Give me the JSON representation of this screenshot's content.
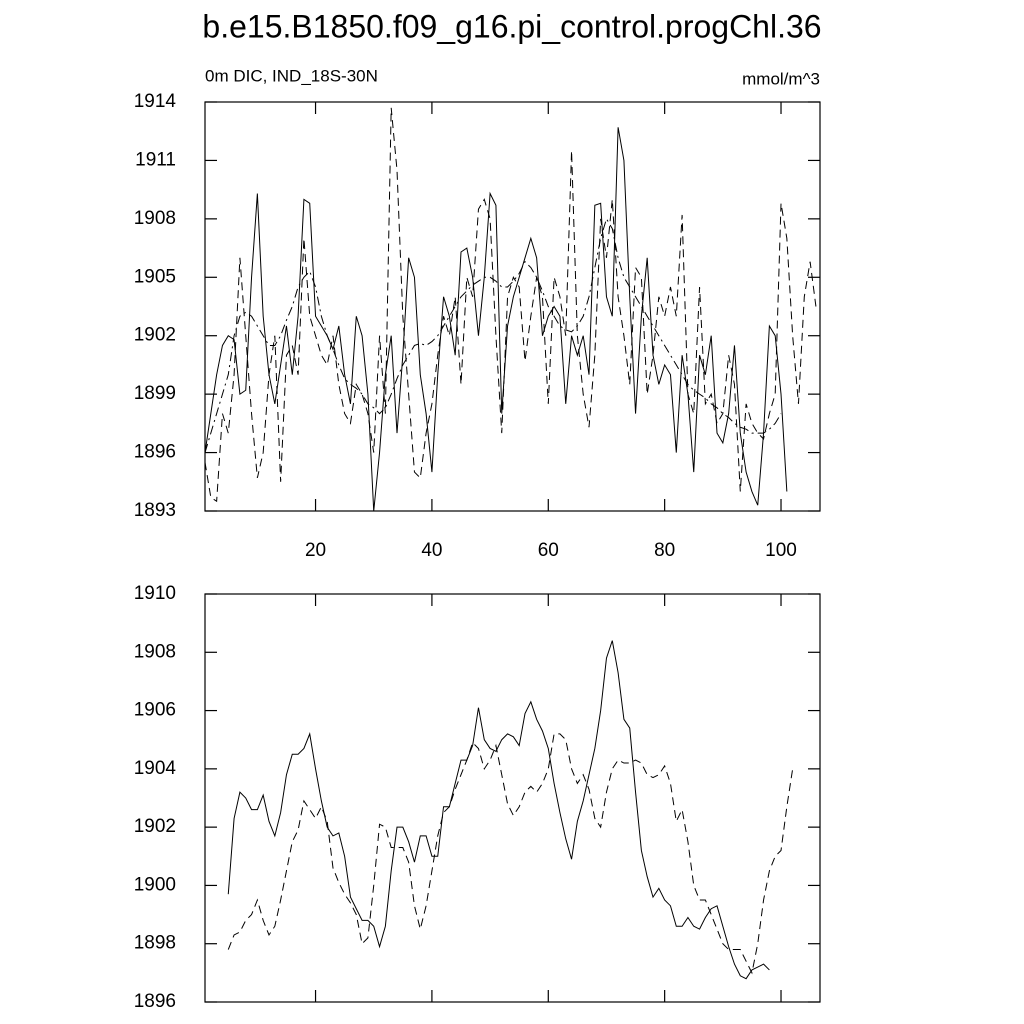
{
  "chart_data": [
    {
      "type": "line",
      "title": "b.e15.B1850.f09_g16.pi_control.progChl.36",
      "subtitle": "0m DIC, IND_18S-30N",
      "units": "mmol/m^3",
      "xlim": [
        1,
        106.7
      ],
      "xticks": [
        20,
        40,
        60,
        80,
        100
      ],
      "ylim": [
        1893,
        1914
      ],
      "yticks": [
        1893,
        1896,
        1899,
        1902,
        1905,
        1908,
        1911,
        1914
      ],
      "series": [
        {
          "color": "#000000",
          "dash": "solid",
          "x": [
            1,
            2,
            3,
            4,
            5,
            6,
            7,
            8,
            9,
            10,
            11,
            12,
            13,
            14,
            15,
            16,
            17,
            18,
            19,
            20,
            21,
            22,
            23,
            24,
            25,
            26,
            27,
            28,
            29,
            30,
            31,
            32,
            33,
            34,
            35,
            36,
            37,
            38,
            39,
            40,
            41,
            42,
            43,
            44,
            45,
            46,
            47,
            48,
            49,
            50,
            51,
            52,
            53,
            54,
            55,
            56,
            57,
            58,
            59,
            60,
            61,
            62,
            63,
            64,
            65,
            66,
            67,
            68,
            69,
            70,
            71,
            72,
            73,
            74,
            75,
            76,
            77,
            78,
            79,
            80,
            81,
            82,
            83,
            84,
            85,
            86,
            87,
            88,
            89,
            90,
            91,
            92,
            93,
            94,
            95,
            96,
            97,
            98,
            99,
            100,
            101
          ],
          "values": [
            1896,
            1898,
            1900,
            1901.5,
            1902,
            1901.8,
            1899,
            1899.2,
            1905,
            1909.3,
            1903,
            1900,
            1898.5,
            1900.5,
            1902.5,
            1900,
            1903,
            1909,
            1908.8,
            1903,
            1902.5,
            1902,
            1901.3,
            1902.5,
            1900,
            1898.5,
            1903,
            1902,
            1899,
            1893,
            1896,
            1900,
            1902,
            1897,
            1901,
            1906,
            1905,
            1900,
            1898,
            1895,
            1900,
            1904,
            1903,
            1901,
            1906.3,
            1906.5,
            1905,
            1902,
            1905,
            1909.3,
            1908.7,
            1898,
            1902.5,
            1904,
            1905,
            1906,
            1907,
            1906,
            1902,
            1903,
            1903.5,
            1903,
            1898.5,
            1902,
            1901,
            1902,
            1900,
            1908.7,
            1908.8,
            1904,
            1903,
            1912.7,
            1911,
            1904,
            1898,
            1903,
            1906,
            1901,
            1899.5,
            1900.5,
            1900,
            1896,
            1901,
            1899,
            1895,
            1901,
            1900,
            1902,
            1897,
            1896.5,
            1898,
            1901.5,
            1897,
            1895,
            1894,
            1893.3,
            1897,
            1902.5,
            1902,
            1899,
            1894
          ]
        },
        {
          "color": "#000000",
          "dash": "dashed",
          "x": [
            1,
            2,
            3,
            4,
            5,
            6,
            7,
            8,
            9,
            10,
            11,
            12,
            13,
            14,
            15,
            16,
            17,
            18,
            19,
            20,
            21,
            22,
            23,
            24,
            25,
            26,
            27,
            28,
            29,
            30,
            31,
            32,
            33,
            34,
            35,
            36,
            37,
            38,
            39,
            40,
            41,
            42,
            43,
            44,
            45,
            46,
            47,
            48,
            49,
            50,
            51,
            52,
            53,
            54,
            55,
            56,
            57,
            58,
            59,
            60,
            61,
            62,
            63,
            64,
            65,
            66,
            67,
            68,
            69,
            70,
            71,
            72,
            73,
            74,
            75,
            76,
            77,
            78,
            79,
            80,
            81,
            82,
            83,
            84,
            85,
            86,
            87,
            88,
            89,
            90,
            91,
            92,
            93,
            94,
            95,
            96,
            97,
            98,
            99,
            100,
            101,
            102,
            103,
            104,
            105,
            106
          ],
          "values": [
            1895.5,
            1893.7,
            1893.5,
            1898,
            1897,
            1900,
            1906,
            1902,
            1898,
            1894.7,
            1896,
            1900,
            1902,
            1894.5,
            1901,
            1901.5,
            1900,
            1907,
            1903,
            1902,
            1901,
            1900.5,
            1902,
            1899.5,
            1898,
            1897.5,
            1899.5,
            1899,
            1898,
            1896,
            1902,
            1898,
            1913.7,
            1910.5,
            1903,
            1899,
            1895,
            1894.7,
            1897,
            1898.5,
            1901,
            1903,
            1902,
            1904,
            1899.5,
            1905,
            1904,
            1908.5,
            1909,
            1908,
            1902,
            1897,
            1904,
            1905,
            1904.5,
            1900.7,
            1903,
            1905,
            1904,
            1898.5,
            1905,
            1904,
            1902,
            1911.5,
            1902,
            1899,
            1897.3,
            1901,
            1908,
            1906,
            1909,
            1904,
            1902,
            1899.5,
            1905.5,
            1905,
            1899,
            1901,
            1904,
            1903,
            1904.5,
            1903,
            1908.2,
            1899,
            1898,
            1904.5,
            1898.5,
            1899,
            1897.5,
            1898,
            1901,
            1899.5,
            1894,
            1898.5,
            1897.5,
            1897,
            1896.7,
            1898,
            1899,
            1908.8,
            1907,
            1902,
            1898.5,
            1904,
            1905.8,
            1903.5
          ]
        },
        {
          "color": "#000000",
          "dash": "dashdot",
          "x": [
            1,
            2,
            3,
            4,
            5,
            6,
            7,
            8,
            9,
            10,
            11,
            12,
            13,
            14,
            15,
            16,
            17,
            18,
            19,
            20,
            21,
            22,
            23,
            24,
            25,
            26,
            27,
            28,
            29,
            30,
            31,
            32,
            33,
            34,
            35,
            36,
            37,
            38,
            39,
            40,
            41,
            42,
            43,
            44,
            45,
            46,
            47,
            48,
            49,
            50,
            51,
            52,
            53,
            54,
            55,
            56,
            57,
            58,
            59,
            60,
            61,
            62,
            63,
            64,
            65,
            66,
            67,
            68,
            69,
            70,
            71,
            72,
            73,
            74,
            75,
            76,
            77,
            78,
            79,
            80,
            81,
            82,
            83,
            84,
            85,
            86,
            87,
            88,
            89,
            90,
            91,
            92,
            93,
            94,
            95,
            96,
            97,
            98,
            99,
            100
          ],
          "values": [
            1896,
            1897,
            1898,
            1899,
            1900,
            1902,
            1903,
            1903.2,
            1903,
            1902.5,
            1902,
            1901.5,
            1901.5,
            1902,
            1902.8,
            1903.5,
            1904.5,
            1905,
            1905.3,
            1904.5,
            1903,
            1902,
            1901.3,
            1900.5,
            1899.8,
            1899.5,
            1899.3,
            1899,
            1898.5,
            1898.3,
            1898,
            1898.3,
            1899,
            1899.8,
            1900.5,
            1901,
            1901.5,
            1901.6,
            1901.5,
            1901.7,
            1902,
            1902.5,
            1903,
            1903.5,
            1904,
            1904.3,
            1904.6,
            1904.8,
            1905,
            1905,
            1904.8,
            1904.5,
            1904.5,
            1904.8,
            1905.2,
            1905.8,
            1905.5,
            1905,
            1904.3,
            1903.5,
            1903,
            1902.5,
            1902.3,
            1902.2,
            1902.5,
            1903,
            1904,
            1905.5,
            1907,
            1908,
            1907.5,
            1906,
            1905,
            1904.5,
            1904,
            1903.5,
            1903,
            1902.5,
            1902,
            1901.5,
            1901,
            1900.5,
            1900,
            1899.5,
            1899.2,
            1899,
            1898.8,
            1898.5,
            1898.3,
            1898,
            1897.8,
            1897.5,
            1897.3,
            1897.2,
            1897,
            1897,
            1897,
            1897.2,
            1897.5,
            1898
          ]
        }
      ]
    },
    {
      "type": "line",
      "xlim": [
        1,
        106.7
      ],
      "xticks": [
        20,
        40,
        60,
        80,
        100
      ],
      "ylim": [
        1896,
        1910
      ],
      "yticks": [
        1896,
        1898,
        1900,
        1902,
        1904,
        1906,
        1908,
        1910
      ],
      "series": [
        {
          "color": "#000000",
          "dash": "solid",
          "x": [
            5,
            6,
            7,
            8,
            9,
            10,
            11,
            12,
            13,
            14,
            15,
            16,
            17,
            18,
            19,
            20,
            21,
            22,
            23,
            24,
            25,
            26,
            27,
            28,
            29,
            30,
            31,
            32,
            33,
            34,
            35,
            36,
            37,
            38,
            39,
            40,
            41,
            42,
            43,
            44,
            45,
            46,
            47,
            48,
            49,
            50,
            51,
            52,
            53,
            54,
            55,
            56,
            57,
            58,
            59,
            60,
            61,
            62,
            63,
            64,
            65,
            66,
            67,
            68,
            69,
            70,
            71,
            72,
            73,
            74,
            75,
            76,
            77,
            78,
            79,
            80,
            81,
            82,
            83,
            84,
            85,
            86,
            87,
            88,
            89,
            90,
            91,
            92,
            93,
            94,
            95,
            96,
            97,
            98
          ],
          "values": [
            1899.7,
            1902.3,
            1903.2,
            1903,
            1902.6,
            1902.6,
            1903.1,
            1902.2,
            1901.7,
            1902.5,
            1903.8,
            1904.5,
            1904.5,
            1904.7,
            1905.2,
            1904,
            1902.9,
            1902,
            1901.7,
            1901.8,
            1901,
            1899.6,
            1899.2,
            1898.8,
            1898.8,
            1898.6,
            1897.9,
            1898.6,
            1900.5,
            1902,
            1902,
            1901.5,
            1900.8,
            1901.7,
            1901.7,
            1901,
            1901,
            1902.7,
            1902.7,
            1903.5,
            1904.3,
            1904.3,
            1904.8,
            1906.1,
            1905,
            1904.7,
            1904.6,
            1905,
            1905.2,
            1905.1,
            1904.8,
            1905.9,
            1906.3,
            1905.7,
            1905.3,
            1904.7,
            1903.5,
            1902.5,
            1901.6,
            1900.9,
            1902.2,
            1902.9,
            1903.8,
            1904.7,
            1906,
            1907.8,
            1908.4,
            1907.3,
            1905.7,
            1905.4,
            1903.2,
            1901.2,
            1900.3,
            1899.6,
            1899.9,
            1899.5,
            1899.3,
            1898.6,
            1898.6,
            1898.9,
            1898.6,
            1898.5,
            1898.9,
            1899.2,
            1899.3,
            1898.6,
            1897.9,
            1897.3,
            1896.9,
            1896.8,
            1897.1,
            1897.2,
            1897.3,
            1897.1
          ]
        },
        {
          "color": "#000000",
          "dash": "dashed",
          "x": [
            5,
            6,
            7,
            8,
            9,
            10,
            11,
            12,
            13,
            14,
            15,
            16,
            17,
            18,
            19,
            20,
            21,
            22,
            23,
            24,
            25,
            26,
            27,
            28,
            29,
            30,
            31,
            32,
            33,
            34,
            35,
            36,
            37,
            38,
            39,
            40,
            41,
            42,
            43,
            44,
            45,
            46,
            47,
            48,
            49,
            50,
            51,
            52,
            53,
            54,
            55,
            56,
            57,
            58,
            59,
            60,
            61,
            62,
            63,
            64,
            65,
            66,
            67,
            68,
            69,
            70,
            71,
            72,
            73,
            74,
            75,
            76,
            77,
            78,
            79,
            80,
            81,
            82,
            83,
            84,
            85,
            86,
            87,
            88,
            89,
            90,
            91,
            92,
            93,
            94,
            95,
            96,
            97,
            98,
            99,
            100,
            101,
            102
          ],
          "values": [
            1897.8,
            1898.3,
            1898.4,
            1898.8,
            1899,
            1899.5,
            1898.8,
            1898.3,
            1898.6,
            1899.5,
            1900.5,
            1901.5,
            1901.9,
            1902.9,
            1902.6,
            1902.3,
            1902.7,
            1902.2,
            1900.6,
            1900.1,
            1899.7,
            1899.4,
            1899,
            1898,
            1898.2,
            1900,
            1902.1,
            1902,
            1901.3,
            1901.3,
            1901.3,
            1900.8,
            1899.3,
            1898.5,
            1899.3,
            1900.5,
            1901.7,
            1902.5,
            1902.7,
            1903.3,
            1903.8,
            1904.3,
            1904.9,
            1904.7,
            1904,
            1904.3,
            1904.8,
            1903.8,
            1902.8,
            1902.4,
            1902.7,
            1903.2,
            1903.4,
            1903.2,
            1903.5,
            1904,
            1905.2,
            1905.2,
            1905,
            1904,
            1903.5,
            1903.8,
            1903.3,
            1902.3,
            1902,
            1903.2,
            1904,
            1904.3,
            1904.2,
            1904.2,
            1904.3,
            1904.2,
            1903.8,
            1903.7,
            1903.8,
            1904.1,
            1903.5,
            1902.2,
            1902.6,
            1901.5,
            1900,
            1899.5,
            1899.5,
            1899,
            1898.5,
            1898,
            1897.8,
            1897.8,
            1897.8,
            1897.4,
            1897,
            1898,
            1899.5,
            1900.5,
            1901,
            1901.2,
            1902.7,
            1904
          ]
        }
      ]
    }
  ]
}
